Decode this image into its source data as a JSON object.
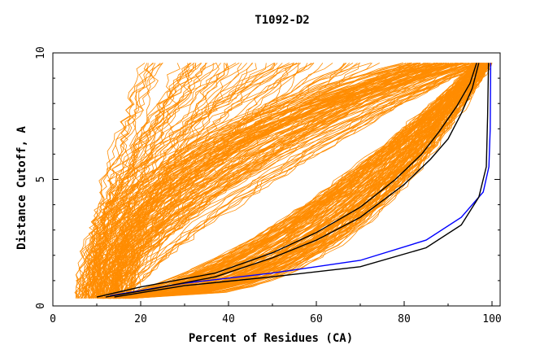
{
  "chart_data": {
    "type": "line",
    "title": "T1092-D2",
    "xlabel": "Percent of Residues (CA)",
    "ylabel": "Distance Cutoff, A",
    "xlim": [
      0,
      100
    ],
    "ylim": [
      0,
      10
    ],
    "xticks": [
      0,
      20,
      40,
      60,
      80,
      100
    ],
    "yticks": [
      0,
      5,
      10
    ],
    "grid": false,
    "legend": "none",
    "colors": {
      "models": "#ff8c00",
      "highlight_black": "#000000",
      "highlight_blue": "#0000ff"
    },
    "highlight_series": [
      {
        "color": "#0000ff",
        "points": [
          [
            13,
            0.4
          ],
          [
            30,
            0.9
          ],
          [
            50,
            1.3
          ],
          [
            70,
            1.8
          ],
          [
            85,
            2.6
          ],
          [
            93,
            3.5
          ],
          [
            98,
            4.5
          ],
          [
            99.3,
            5.5
          ],
          [
            99.6,
            7
          ],
          [
            99.7,
            9.6
          ]
        ]
      },
      {
        "color": "#000000",
        "points": [
          [
            14,
            0.35
          ],
          [
            30,
            0.8
          ],
          [
            50,
            1.15
          ],
          [
            70,
            1.55
          ],
          [
            85,
            2.3
          ],
          [
            93,
            3.2
          ],
          [
            97,
            4.3
          ],
          [
            98.7,
            5.5
          ],
          [
            99,
            7.5
          ],
          [
            99.2,
            9.6
          ]
        ]
      },
      {
        "color": "#000000",
        "points": [
          [
            10,
            0.35
          ],
          [
            20,
            0.75
          ],
          [
            37,
            1.3
          ],
          [
            50,
            2.1
          ],
          [
            60,
            2.9
          ],
          [
            70,
            3.9
          ],
          [
            78,
            5.0
          ],
          [
            84,
            6.0
          ],
          [
            88,
            6.9
          ],
          [
            92,
            7.9
          ],
          [
            95,
            8.8
          ],
          [
            96.5,
            9.6
          ]
        ]
      },
      {
        "color": "#000000",
        "points": [
          [
            12,
            0.35
          ],
          [
            22,
            0.65
          ],
          [
            37,
            1.15
          ],
          [
            50,
            1.9
          ],
          [
            60,
            2.6
          ],
          [
            70,
            3.5
          ],
          [
            80,
            4.8
          ],
          [
            86,
            5.8
          ],
          [
            90,
            6.6
          ],
          [
            93,
            7.6
          ],
          [
            95.5,
            8.6
          ],
          [
            97,
            9.6
          ]
        ]
      }
    ]
  }
}
